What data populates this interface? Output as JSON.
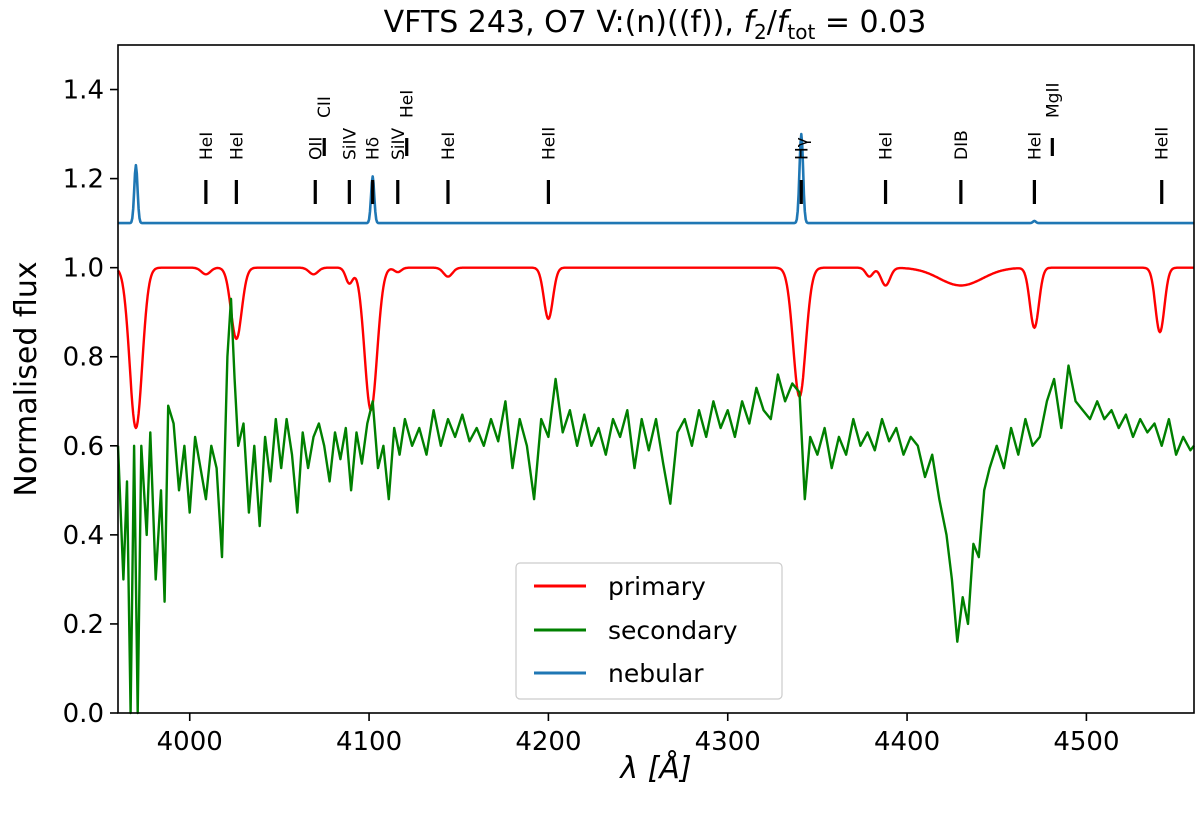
{
  "chart_data": {
    "type": "line",
    "title": "VFTS 243, O7 V:(n)((f)), f2/ftot = 0.03",
    "title_parts": {
      "prefix": "VFTS 243, O7 V:(n)((f)), ",
      "f": "f",
      "sub2": "2",
      "slash": "/",
      "subtot": "tot",
      "suffix": " = 0.03"
    },
    "xlabel": "λ [Å]",
    "ylabel": "Normalised flux",
    "xlim": [
      3960,
      4560
    ],
    "ylim": [
      0.0,
      1.5
    ],
    "xticks": [
      4000,
      4100,
      4200,
      4300,
      4400,
      4500
    ],
    "yticks": [
      0.0,
      0.2,
      0.4,
      0.6,
      0.8,
      1.0,
      1.2,
      1.4
    ],
    "ytick_labels": [
      "0.0",
      "0.2",
      "0.4",
      "0.6",
      "0.8",
      "1.0",
      "1.2",
      "1.4"
    ],
    "legend": {
      "position": "lower-center",
      "entries": [
        "primary",
        "secondary",
        "nebular"
      ]
    },
    "colors": {
      "primary": "#ff0000",
      "secondary": "#008000",
      "nebular": "#1f77b4",
      "ticks": "#000000"
    },
    "series": [
      {
        "name": "primary",
        "baseline": 1.0,
        "lines": [
          {
            "center": 3970,
            "depth": 0.36,
            "width": 3.5
          },
          {
            "center": 4009,
            "depth": 0.015,
            "width": 2.5
          },
          {
            "center": 4026,
            "depth": 0.16,
            "width": 3.0
          },
          {
            "center": 4069,
            "depth": 0.015,
            "width": 2.5
          },
          {
            "center": 4089,
            "depth": 0.035,
            "width": 2.0
          },
          {
            "center": 4101,
            "depth": 0.32,
            "width": 3.5
          },
          {
            "center": 4116,
            "depth": 0.01,
            "width": 2.0
          },
          {
            "center": 4144,
            "depth": 0.02,
            "width": 2.5
          },
          {
            "center": 4200,
            "depth": 0.115,
            "width": 2.5
          },
          {
            "center": 4340,
            "depth": 0.29,
            "width": 3.5
          },
          {
            "center": 4379,
            "depth": 0.02,
            "width": 2.0
          },
          {
            "center": 4388,
            "depth": 0.04,
            "width": 2.5
          },
          {
            "center": 4430,
            "depth": 0.04,
            "width": 12.0
          },
          {
            "center": 4471,
            "depth": 0.135,
            "width": 2.5
          },
          {
            "center": 4541,
            "depth": 0.145,
            "width": 2.5
          }
        ]
      },
      {
        "name": "secondary",
        "points": [
          [
            3960,
            0.6
          ],
          [
            3963,
            0.3
          ],
          [
            3965,
            0.52
          ],
          [
            3967,
            0.0
          ],
          [
            3969,
            0.6
          ],
          [
            3971,
            0.0
          ],
          [
            3973,
            0.6
          ],
          [
            3976,
            0.4
          ],
          [
            3978,
            0.63
          ],
          [
            3981,
            0.3
          ],
          [
            3984,
            0.5
          ],
          [
            3986,
            0.25
          ],
          [
            3988,
            0.69
          ],
          [
            3991,
            0.65
          ],
          [
            3994,
            0.5
          ],
          [
            3997,
            0.6
          ],
          [
            4000,
            0.45
          ],
          [
            4003,
            0.62
          ],
          [
            4006,
            0.55
          ],
          [
            4009,
            0.48
          ],
          [
            4012,
            0.6
          ],
          [
            4015,
            0.55
          ],
          [
            4018,
            0.35
          ],
          [
            4021,
            0.8
          ],
          [
            4023,
            0.93
          ],
          [
            4025,
            0.75
          ],
          [
            4027,
            0.6
          ],
          [
            4030,
            0.65
          ],
          [
            4033,
            0.45
          ],
          [
            4036,
            0.6
          ],
          [
            4039,
            0.42
          ],
          [
            4042,
            0.62
          ],
          [
            4045,
            0.52
          ],
          [
            4048,
            0.66
          ],
          [
            4051,
            0.55
          ],
          [
            4054,
            0.66
          ],
          [
            4057,
            0.58
          ],
          [
            4060,
            0.45
          ],
          [
            4063,
            0.63
          ],
          [
            4066,
            0.55
          ],
          [
            4069,
            0.62
          ],
          [
            4072,
            0.65
          ],
          [
            4075,
            0.6
          ],
          [
            4078,
            0.52
          ],
          [
            4081,
            0.63
          ],
          [
            4084,
            0.57
          ],
          [
            4087,
            0.64
          ],
          [
            4090,
            0.5
          ],
          [
            4093,
            0.63
          ],
          [
            4096,
            0.56
          ],
          [
            4099,
            0.65
          ],
          [
            4102,
            0.7
          ],
          [
            4105,
            0.55
          ],
          [
            4108,
            0.6
          ],
          [
            4111,
            0.48
          ],
          [
            4114,
            0.64
          ],
          [
            4117,
            0.58
          ],
          [
            4120,
            0.66
          ],
          [
            4124,
            0.6
          ],
          [
            4128,
            0.64
          ],
          [
            4132,
            0.58
          ],
          [
            4136,
            0.68
          ],
          [
            4140,
            0.6
          ],
          [
            4144,
            0.66
          ],
          [
            4148,
            0.62
          ],
          [
            4152,
            0.67
          ],
          [
            4156,
            0.61
          ],
          [
            4160,
            0.64
          ],
          [
            4164,
            0.6
          ],
          [
            4168,
            0.66
          ],
          [
            4172,
            0.61
          ],
          [
            4176,
            0.7
          ],
          [
            4180,
            0.55
          ],
          [
            4184,
            0.66
          ],
          [
            4188,
            0.6
          ],
          [
            4192,
            0.48
          ],
          [
            4196,
            0.66
          ],
          [
            4200,
            0.62
          ],
          [
            4204,
            0.75
          ],
          [
            4208,
            0.63
          ],
          [
            4212,
            0.68
          ],
          [
            4216,
            0.6
          ],
          [
            4220,
            0.67
          ],
          [
            4224,
            0.6
          ],
          [
            4228,
            0.64
          ],
          [
            4232,
            0.58
          ],
          [
            4236,
            0.66
          ],
          [
            4240,
            0.62
          ],
          [
            4244,
            0.68
          ],
          [
            4248,
            0.55
          ],
          [
            4252,
            0.66
          ],
          [
            4256,
            0.59
          ],
          [
            4260,
            0.66
          ],
          [
            4264,
            0.56
          ],
          [
            4268,
            0.47
          ],
          [
            4272,
            0.63
          ],
          [
            4276,
            0.66
          ],
          [
            4280,
            0.6
          ],
          [
            4284,
            0.68
          ],
          [
            4288,
            0.62
          ],
          [
            4292,
            0.7
          ],
          [
            4296,
            0.64
          ],
          [
            4300,
            0.68
          ],
          [
            4304,
            0.62
          ],
          [
            4308,
            0.7
          ],
          [
            4312,
            0.65
          ],
          [
            4316,
            0.73
          ],
          [
            4320,
            0.68
          ],
          [
            4324,
            0.66
          ],
          [
            4328,
            0.76
          ],
          [
            4332,
            0.7
          ],
          [
            4336,
            0.74
          ],
          [
            4340,
            0.72
          ],
          [
            4343,
            0.48
          ],
          [
            4346,
            0.62
          ],
          [
            4350,
            0.58
          ],
          [
            4354,
            0.64
          ],
          [
            4358,
            0.55
          ],
          [
            4362,
            0.62
          ],
          [
            4366,
            0.58
          ],
          [
            4370,
            0.66
          ],
          [
            4374,
            0.6
          ],
          [
            4378,
            0.63
          ],
          [
            4382,
            0.59
          ],
          [
            4386,
            0.66
          ],
          [
            4390,
            0.61
          ],
          [
            4394,
            0.64
          ],
          [
            4398,
            0.58
          ],
          [
            4402,
            0.62
          ],
          [
            4406,
            0.6
          ],
          [
            4410,
            0.53
          ],
          [
            4414,
            0.58
          ],
          [
            4418,
            0.48
          ],
          [
            4422,
            0.4
          ],
          [
            4425,
            0.3
          ],
          [
            4428,
            0.16
          ],
          [
            4431,
            0.26
          ],
          [
            4434,
            0.2
          ],
          [
            4437,
            0.38
          ],
          [
            4440,
            0.35
          ],
          [
            4443,
            0.5
          ],
          [
            4446,
            0.55
          ],
          [
            4450,
            0.6
          ],
          [
            4454,
            0.55
          ],
          [
            4458,
            0.64
          ],
          [
            4462,
            0.58
          ],
          [
            4466,
            0.66
          ],
          [
            4470,
            0.6
          ],
          [
            4474,
            0.62
          ],
          [
            4478,
            0.7
          ],
          [
            4482,
            0.75
          ],
          [
            4486,
            0.64
          ],
          [
            4490,
            0.78
          ],
          [
            4494,
            0.7
          ],
          [
            4498,
            0.68
          ],
          [
            4502,
            0.66
          ],
          [
            4506,
            0.7
          ],
          [
            4510,
            0.66
          ],
          [
            4514,
            0.68
          ],
          [
            4518,
            0.64
          ],
          [
            4522,
            0.67
          ],
          [
            4526,
            0.62
          ],
          [
            4530,
            0.66
          ],
          [
            4534,
            0.63
          ],
          [
            4538,
            0.65
          ],
          [
            4542,
            0.6
          ],
          [
            4546,
            0.66
          ],
          [
            4550,
            0.58
          ],
          [
            4554,
            0.62
          ],
          [
            4558,
            0.59
          ],
          [
            4560,
            0.6
          ]
        ]
      },
      {
        "name": "nebular",
        "baseline": 1.1,
        "lines": [
          {
            "center": 3970,
            "height": 0.13,
            "width": 0.9
          },
          {
            "center": 4102,
            "height": 0.105,
            "width": 0.9
          },
          {
            "center": 4341,
            "height": 0.2,
            "width": 1.0
          },
          {
            "center": 4471,
            "height": 0.005,
            "width": 0.8
          }
        ]
      }
    ],
    "line_ids": [
      {
        "label": "HeI",
        "x": 4009,
        "row": 1
      },
      {
        "label": "HeI",
        "x": 4026,
        "row": 1
      },
      {
        "label": "OII",
        "x": 4070,
        "row": 1
      },
      {
        "label": "CII",
        "x": 4075,
        "row": 2
      },
      {
        "label": "SiIV",
        "x": 4089,
        "row": 1
      },
      {
        "label": "Hδ",
        "x": 4102,
        "row": 1
      },
      {
        "label": "SiIV",
        "x": 4116,
        "row": 1
      },
      {
        "label": "HeI",
        "x": 4121,
        "row": 2
      },
      {
        "label": "HeI",
        "x": 4144,
        "row": 1
      },
      {
        "label": "HeII",
        "x": 4200,
        "row": 1
      },
      {
        "label": "Hγ",
        "x": 4341,
        "row": 1
      },
      {
        "label": "HeI",
        "x": 4388,
        "row": 1
      },
      {
        "label": "DIB",
        "x": 4430,
        "row": 1
      },
      {
        "label": "HeI",
        "x": 4471,
        "row": 1
      },
      {
        "label": "MgII",
        "x": 4481,
        "row": 2
      },
      {
        "label": "HeII",
        "x": 4542,
        "row": 1
      }
    ]
  }
}
